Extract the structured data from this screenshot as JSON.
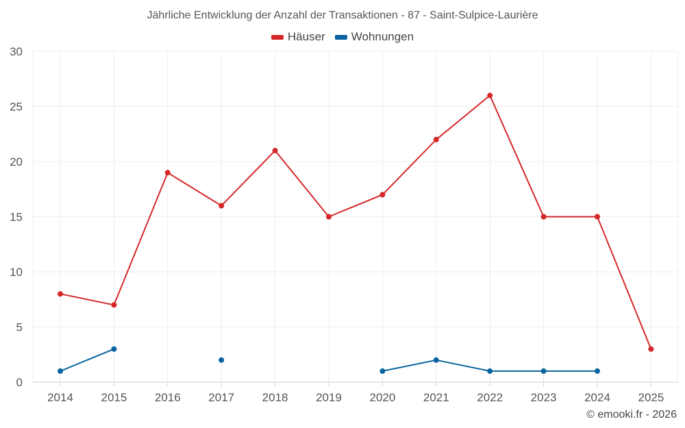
{
  "chart_data": {
    "type": "line",
    "title": "Jährliche Entwicklung der Anzahl der Transaktionen - 87 - Saint-Sulpice-Laurière",
    "categories": [
      "2014",
      "2015",
      "2016",
      "2017",
      "2018",
      "2019",
      "2020",
      "2021",
      "2022",
      "2023",
      "2024",
      "2025"
    ],
    "ylim": [
      0,
      30
    ],
    "yticks": [
      "0",
      "5",
      "10",
      "15",
      "20",
      "25",
      "30"
    ],
    "xlabel": "",
    "ylabel": "",
    "series": [
      {
        "name": "Häuser",
        "color": "#d62728",
        "values": [
          8,
          7,
          19,
          16,
          21,
          15,
          17,
          22,
          26,
          15,
          15,
          3
        ]
      },
      {
        "name": "Wohnungen",
        "color": "#0a64a0",
        "values": [
          1,
          3,
          null,
          2,
          null,
          null,
          1,
          2,
          1,
          1,
          1,
          null
        ]
      }
    ],
    "legend_position": "top-center",
    "grid": true
  },
  "footer": {
    "credit": "© emooki.fr - 2026"
  }
}
